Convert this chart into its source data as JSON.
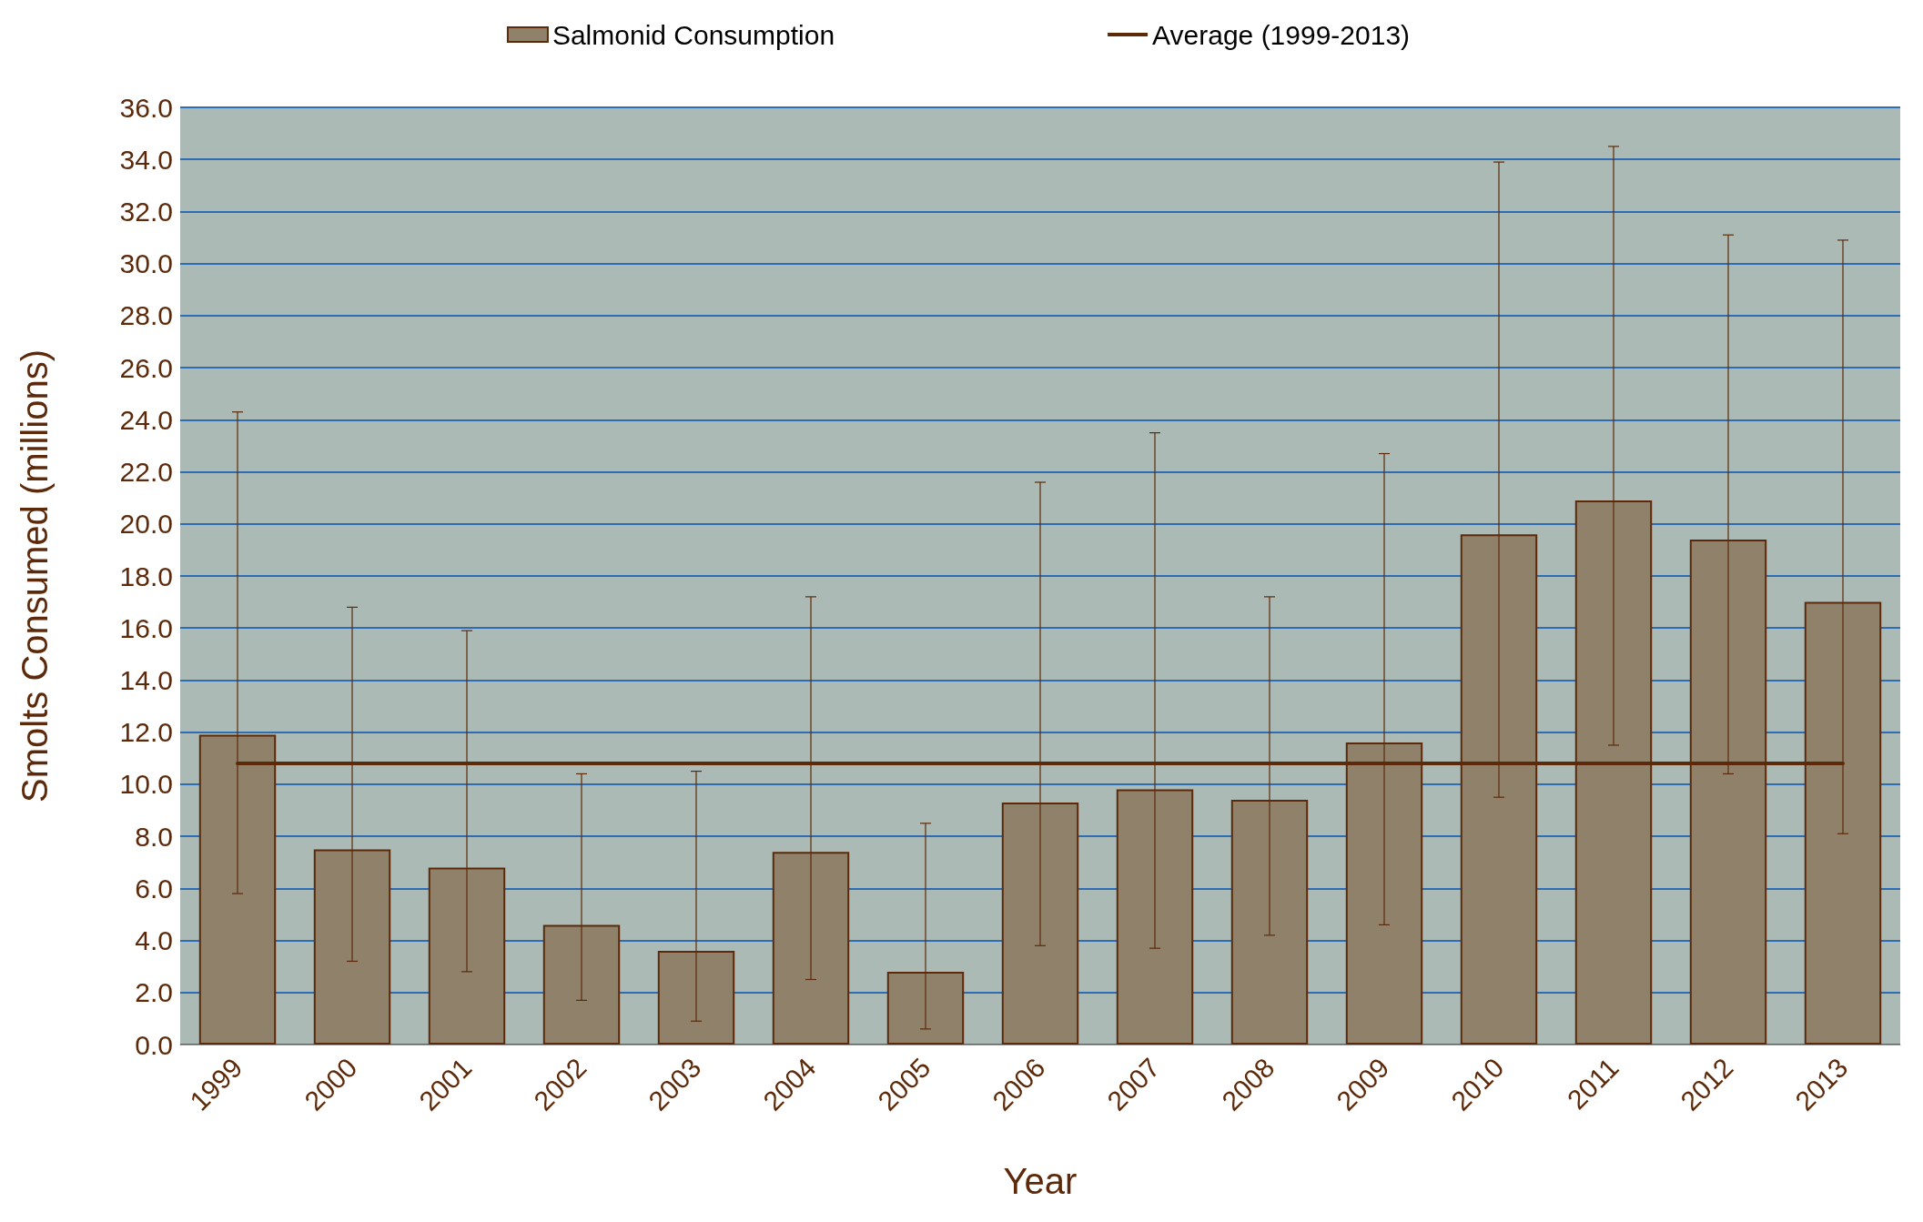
{
  "chart_data": {
    "type": "bar",
    "xlabel": "Year",
    "ylabel": "Smolts Consumed (millions)",
    "categories": [
      "1999",
      "2000",
      "2001",
      "2002",
      "2003",
      "2004",
      "2005",
      "2006",
      "2007",
      "2008",
      "2009",
      "2010",
      "2011",
      "2012",
      "2013"
    ],
    "series": [
      {
        "name": "Salmonid Consumption",
        "color": "#8f816a",
        "values": [
          11.9,
          7.5,
          6.8,
          4.6,
          3.6,
          7.4,
          2.8,
          9.3,
          9.8,
          9.4,
          11.6,
          19.6,
          20.9,
          19.4,
          17.0
        ],
        "errors": [
          [
            5.8,
            24.3
          ],
          [
            3.2,
            16.8
          ],
          [
            2.8,
            15.9
          ],
          [
            1.7,
            10.4
          ],
          [
            0.9,
            10.5
          ],
          [
            2.5,
            17.2
          ],
          [
            0.6,
            8.5
          ],
          [
            3.8,
            21.6
          ],
          [
            3.7,
            23.5
          ],
          [
            4.2,
            17.2
          ],
          [
            4.6,
            22.7
          ],
          [
            9.5,
            33.9
          ],
          [
            11.5,
            34.5
          ],
          [
            10.4,
            31.1
          ],
          [
            8.1,
            30.9
          ]
        ]
      },
      {
        "name": "Average (1999-2013)",
        "type": "line",
        "color": "#5c2a0a",
        "values": [
          10.8,
          10.8,
          10.8,
          10.8,
          10.8,
          10.8,
          10.8,
          10.8,
          10.8,
          10.8,
          10.8,
          10.8,
          10.8,
          10.8,
          10.8
        ]
      }
    ],
    "ylim": [
      0,
      36
    ],
    "yticks": [
      {
        "value": 0,
        "label": "0.0"
      },
      {
        "value": 2,
        "label": "2.0"
      },
      {
        "value": 4,
        "label": "4.0"
      },
      {
        "value": 6,
        "label": "6.0"
      },
      {
        "value": 8,
        "label": "8.0"
      },
      {
        "value": 10,
        "label": "10.0"
      },
      {
        "value": 12,
        "label": "12.0"
      },
      {
        "value": 14,
        "label": "14.0"
      },
      {
        "value": 16,
        "label": "16.0"
      },
      {
        "value": 18,
        "label": "18.0"
      },
      {
        "value": 20,
        "label": "20.0"
      },
      {
        "value": 22,
        "label": "22.0"
      },
      {
        "value": 24,
        "label": "24.0"
      },
      {
        "value": 26,
        "label": "26.0"
      },
      {
        "value": 28,
        "label": "28.0"
      },
      {
        "value": 30,
        "label": "30.0"
      },
      {
        "value": 32,
        "label": "32.0"
      },
      {
        "value": 34,
        "label": "34.0"
      },
      {
        "value": 36,
        "label": "36.0"
      }
    ],
    "grid": "y",
    "legend": "top",
    "marker": "none",
    "line_style": "solid"
  }
}
